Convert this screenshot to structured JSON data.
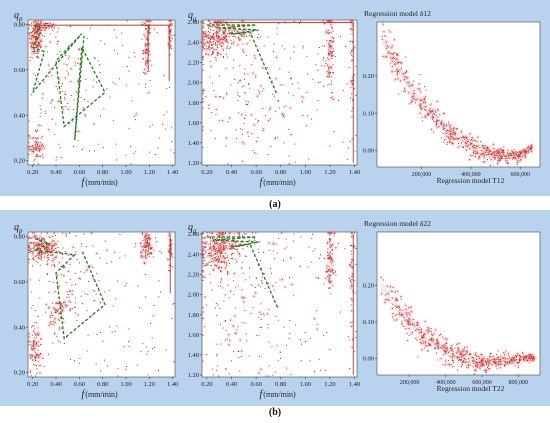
{
  "figure": {
    "subfigure_labels": [
      "(a)",
      "(b)"
    ]
  },
  "colors": {
    "panel_background": "#b9d3ee",
    "point": "#b22222",
    "point_glow": "#f08080",
    "boundary_line": "#1e7b1e"
  },
  "chart_data": [
    {
      "id": "a1",
      "type": "scatter",
      "row": "a",
      "ylabel_main": "q",
      "ylabel_sub": "p",
      "xlabel_main": "f",
      "xlabel_unit": "(mm/min)",
      "xlim": [
        0.16,
        1.42
      ],
      "ylim": [
        0.18,
        0.82
      ],
      "xticks": [
        0.2,
        0.4,
        0.6,
        0.8,
        1.0,
        1.2,
        1.4
      ],
      "yticks": [
        0.2,
        0.4,
        0.6,
        0.8
      ],
      "boundary": [
        [
          0.22,
          0.8
        ],
        [
          0.26,
          0.76
        ],
        [
          0.2,
          0.7
        ],
        [
          0.3,
          0.68
        ],
        [
          0.2,
          0.5
        ],
        [
          0.62,
          0.76
        ],
        [
          0.4,
          0.64
        ],
        [
          0.47,
          0.35
        ],
        [
          0.82,
          0.5
        ],
        [
          0.62,
          0.7
        ],
        [
          0.56,
          0.29
        ],
        [
          0.64,
          0.75
        ]
      ],
      "clusters": [
        {
          "x": 0.23,
          "y": 0.74,
          "sx": 0.03,
          "sy": 0.05,
          "n": 160
        },
        {
          "x": 0.3,
          "y": 0.79,
          "sx": 0.05,
          "sy": 0.01,
          "n": 60
        },
        {
          "x": 0.23,
          "y": 0.26,
          "sx": 0.03,
          "sy": 0.04,
          "n": 80
        },
        {
          "x": 0.5,
          "y": 0.55,
          "sx": 0.1,
          "sy": 0.12,
          "n": 70
        },
        {
          "x": 1.18,
          "y": 0.7,
          "sx": 0.015,
          "sy": 0.07,
          "n": 90
        },
        {
          "x": 1.38,
          "y": 0.75,
          "sx": 0.01,
          "sy": 0.05,
          "n": 40
        }
      ],
      "edge_lines": [
        {
          "y": 0.797,
          "x0": 0.2,
          "x1": 1.4
        },
        {
          "x": 1.37,
          "y0": 0.55,
          "y1": 0.8
        },
        {
          "x": 1.19,
          "y0": 0.6,
          "y1": 0.8
        }
      ]
    },
    {
      "id": "a2",
      "type": "scatter",
      "row": "a",
      "ylabel_main": "q",
      "ylabel_sub": "g",
      "xlabel_main": "f",
      "xlabel_unit": "(mm/min)",
      "xlim": [
        0.16,
        1.42
      ],
      "ylim": [
        1.18,
        2.62
      ],
      "xticks": [
        0.2,
        0.4,
        0.6,
        0.8,
        1.0,
        1.2,
        1.4
      ],
      "yticks": [
        1.2,
        1.4,
        1.6,
        1.8,
        2.0,
        2.2,
        2.4,
        2.6
      ],
      "boundary": [
        [
          0.2,
          2.57
        ],
        [
          0.6,
          2.57
        ],
        [
          0.3,
          2.54
        ],
        [
          0.62,
          2.52
        ],
        [
          0.4,
          2.48
        ],
        [
          0.55,
          2.5
        ],
        [
          0.77,
          1.88
        ]
      ],
      "clusters": [
        {
          "x": 0.26,
          "y": 2.44,
          "sx": 0.07,
          "sy": 0.1,
          "n": 200
        },
        {
          "x": 0.4,
          "y": 2.48,
          "sx": 0.1,
          "sy": 0.06,
          "n": 80
        },
        {
          "x": 0.55,
          "y": 1.9,
          "sx": 0.25,
          "sy": 0.35,
          "n": 110
        },
        {
          "x": 1.2,
          "y": 2.3,
          "sx": 0.02,
          "sy": 0.25,
          "n": 100
        },
        {
          "x": 1.38,
          "y": 2.2,
          "sx": 0.01,
          "sy": 0.3,
          "n": 40
        }
      ],
      "edge_lines": [
        {
          "x": 1.39,
          "y0": 1.2,
          "y1": 2.6
        },
        {
          "y": 2.595,
          "x0": 0.25,
          "x1": 1.38
        }
      ]
    },
    {
      "id": "a3",
      "type": "scatter",
      "row": "a",
      "title": "Regression model δ12",
      "xlabel": "Regression model T12",
      "xlim": [
        20000,
        680000
      ],
      "ylim": [
        -0.045,
        0.345
      ],
      "xticks": [
        200000,
        400000,
        600000
      ],
      "xtick_labels": [
        "200,000",
        "400,000",
        "600,000"
      ],
      "yticks": [
        0.0,
        0.1,
        0.2
      ],
      "ytick_labels": [
        "0.00",
        "0.10",
        "0.20"
      ],
      "curve": {
        "x0": 40000,
        "x1": 650000,
        "y_start": 0.3,
        "y_min": -0.015,
        "x_min": 560000,
        "y_end": 0.01
      },
      "points": 520
    },
    {
      "id": "b1",
      "type": "scatter",
      "row": "b",
      "ylabel_main": "q",
      "ylabel_sub": "p",
      "xlabel_main": "f",
      "xlabel_unit": "(mm/min)",
      "xlim": [
        0.16,
        1.42
      ],
      "ylim": [
        0.18,
        0.82
      ],
      "xticks": [
        0.2,
        0.4,
        0.6,
        0.8,
        1.0,
        1.2,
        1.4
      ],
      "yticks": [
        0.2,
        0.4,
        0.6,
        0.8
      ],
      "boundary": [
        [
          0.22,
          0.79
        ],
        [
          0.34,
          0.77
        ],
        [
          0.22,
          0.74
        ],
        [
          0.56,
          0.72
        ],
        [
          0.4,
          0.64
        ],
        [
          0.47,
          0.35
        ],
        [
          0.82,
          0.5
        ],
        [
          0.62,
          0.74
        ]
      ],
      "clusters": [
        {
          "x": 0.28,
          "y": 0.75,
          "sx": 0.07,
          "sy": 0.03,
          "n": 220
        },
        {
          "x": 0.22,
          "y": 0.3,
          "sx": 0.03,
          "sy": 0.06,
          "n": 90
        },
        {
          "x": 0.42,
          "y": 0.46,
          "sx": 0.04,
          "sy": 0.05,
          "n": 60
        },
        {
          "x": 0.55,
          "y": 0.6,
          "sx": 0.1,
          "sy": 0.12,
          "n": 70
        },
        {
          "x": 1.18,
          "y": 0.76,
          "sx": 0.03,
          "sy": 0.03,
          "n": 100
        },
        {
          "x": 1.38,
          "y": 0.74,
          "sx": 0.01,
          "sy": 0.04,
          "n": 40
        }
      ],
      "edge_lines": [
        {
          "x": 1.38,
          "y0": 0.55,
          "y1": 0.8
        }
      ]
    },
    {
      "id": "b2",
      "type": "scatter",
      "row": "b",
      "ylabel_main": "q",
      "ylabel_sub": "g",
      "xlabel_main": "f",
      "xlabel_unit": "(mm/min)",
      "xlim": [
        0.16,
        1.42
      ],
      "ylim": [
        1.18,
        2.62
      ],
      "xticks": [
        0.2,
        0.4,
        0.6,
        0.8,
        1.0,
        1.2,
        1.4
      ],
      "yticks": [
        1.2,
        1.4,
        1.6,
        1.8,
        2.0,
        2.2,
        2.4,
        2.6
      ],
      "boundary": [
        [
          0.2,
          2.57
        ],
        [
          0.6,
          2.57
        ],
        [
          0.25,
          2.54
        ],
        [
          0.62,
          2.52
        ],
        [
          0.4,
          2.47
        ],
        [
          0.55,
          2.5
        ],
        [
          0.77,
          1.88
        ]
      ],
      "clusters": [
        {
          "x": 0.28,
          "y": 2.42,
          "sx": 0.08,
          "sy": 0.12,
          "n": 240
        },
        {
          "x": 0.4,
          "y": 2.5,
          "sx": 0.1,
          "sy": 0.06,
          "n": 80
        },
        {
          "x": 0.55,
          "y": 1.9,
          "sx": 0.25,
          "sy": 0.35,
          "n": 110
        },
        {
          "x": 1.2,
          "y": 2.35,
          "sx": 0.02,
          "sy": 0.22,
          "n": 100
        },
        {
          "x": 1.38,
          "y": 2.2,
          "sx": 0.01,
          "sy": 0.3,
          "n": 40
        }
      ],
      "edge_lines": [
        {
          "x": 1.39,
          "y0": 1.2,
          "y1": 2.6
        }
      ]
    },
    {
      "id": "b3",
      "type": "scatter",
      "row": "b",
      "title": "Regression model δ22",
      "xlabel": "Regression model T22",
      "xlim": [
        20000,
        920000
      ],
      "ylim": [
        -0.045,
        0.345
      ],
      "xticks": [
        200000,
        400000,
        600000,
        800000
      ],
      "xtick_labels": [
        "200,000",
        "400,000",
        "600,000",
        "800,000"
      ],
      "yticks": [
        0.0,
        0.1,
        0.2
      ],
      "ytick_labels": [
        "0.00",
        "0.10",
        "0.20"
      ],
      "curve": {
        "x0": 40000,
        "x1": 890000,
        "y_start": 0.2,
        "y_min": -0.01,
        "x_min": 640000,
        "y_end": 0.005
      },
      "points": 520
    }
  ]
}
